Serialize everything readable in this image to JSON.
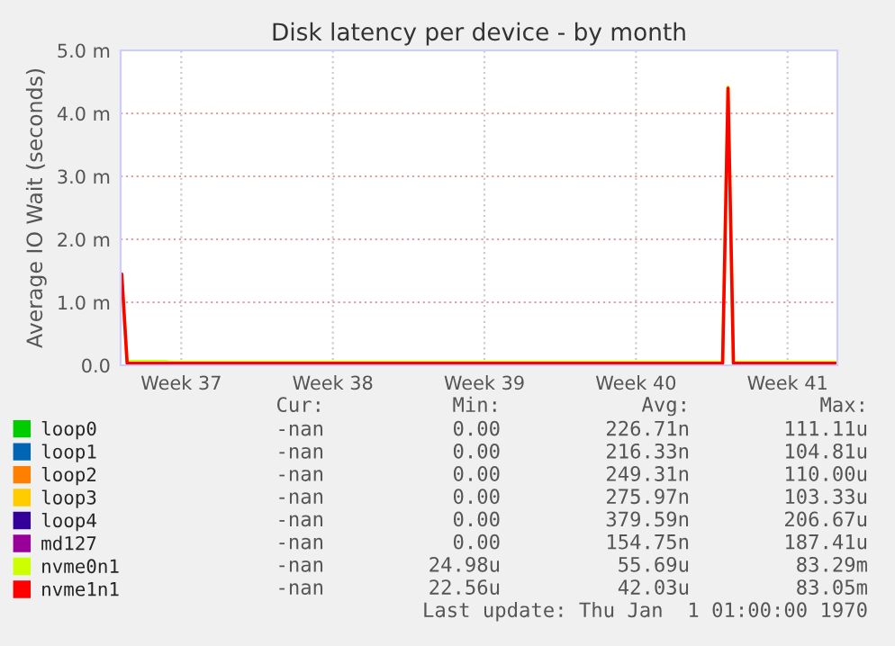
{
  "chart_data": {
    "type": "line",
    "title": "Disk latency per device - by month",
    "ylabel": "Average IO Wait (seconds)",
    "categories": [
      null,
      null,
      null,
      null,
      null,
      null,
      null,
      null,
      null,
      null,
      null,
      "Week 37",
      null,
      null,
      null,
      null,
      null,
      null,
      null,
      null,
      null,
      null,
      null,
      null,
      null,
      null,
      null,
      null,
      null,
      null,
      null,
      null,
      null,
      null,
      null,
      null,
      null,
      null,
      null,
      "Week 38",
      null,
      null,
      null,
      null,
      null,
      null,
      null,
      null,
      null,
      null,
      null,
      null,
      null,
      null,
      null,
      null,
      null,
      null,
      null,
      null,
      null,
      null,
      null,
      null,
      null,
      null,
      null,
      "Week 39",
      null,
      null,
      null,
      null,
      null,
      null,
      null,
      null,
      null,
      null,
      null,
      null,
      null,
      null,
      null,
      null,
      null,
      null,
      null,
      null,
      null,
      null,
      null,
      null,
      null,
      null,
      null,
      "Week 40",
      null,
      null,
      null,
      null,
      null,
      null,
      null,
      null,
      null,
      null,
      null,
      null,
      null,
      null,
      null,
      null,
      null,
      null,
      null,
      null,
      null,
      null,
      null,
      null,
      null,
      null,
      null,
      "Week 41",
      null,
      null,
      null,
      null,
      null,
      null,
      null,
      null,
      null
    ],
    "ylim": [
      0,
      5
    ],
    "yticks": [
      {
        "value": 0,
        "label": "0.0"
      },
      {
        "value": 1,
        "label": "1.0 m"
      },
      {
        "value": 2,
        "label": "2.0 m"
      },
      {
        "value": 3,
        "label": "3.0 m"
      },
      {
        "value": 4,
        "label": "4.0 m"
      },
      {
        "value": 5,
        "label": "5.0 m"
      }
    ],
    "grid": true,
    "legend": "bottom left",
    "marker": "none",
    "line_style": "solid",
    "series": [
      {
        "name": "loop0",
        "color": "#00cc00",
        "values": [
          null,
          null,
          null,
          null,
          null,
          null,
          null,
          null,
          null,
          null,
          null,
          null,
          null,
          null,
          null,
          null,
          null,
          null,
          null,
          null,
          null,
          null,
          null,
          null,
          null,
          null,
          null,
          null,
          null,
          null,
          null,
          null,
          null,
          null,
          null,
          null,
          null,
          null,
          null,
          null,
          null,
          null,
          null,
          null,
          null,
          null,
          null,
          null,
          null,
          null,
          null,
          null,
          null,
          null,
          null,
          null,
          null,
          null,
          null,
          null,
          null,
          null,
          null,
          null,
          null,
          null,
          null,
          null,
          null,
          null,
          null,
          null,
          null,
          null,
          null,
          null,
          null,
          null,
          null,
          null,
          null,
          null,
          null,
          null,
          null,
          null,
          null,
          null,
          null,
          null,
          null,
          null,
          null,
          null,
          null,
          null,
          null,
          null,
          null,
          null,
          null,
          null,
          null,
          null,
          null,
          null,
          null,
          null,
          null,
          null,
          null,
          null,
          null,
          null,
          null,
          null,
          null,
          null,
          null,
          null,
          null,
          null,
          null,
          null,
          null,
          null,
          null,
          null,
          null,
          null,
          null,
          null,
          null
        ]
      },
      {
        "name": "loop1",
        "color": "#0066b3",
        "values": [
          null,
          null,
          null,
          null,
          null,
          null,
          null,
          null,
          null,
          null,
          null,
          null,
          null,
          null,
          null,
          null,
          null,
          null,
          null,
          null,
          null,
          null,
          null,
          null,
          null,
          null,
          null,
          null,
          null,
          null,
          null,
          null,
          null,
          null,
          null,
          null,
          null,
          null,
          null,
          null,
          null,
          null,
          null,
          null,
          null,
          null,
          null,
          null,
          null,
          null,
          null,
          null,
          null,
          null,
          null,
          null,
          null,
          null,
          null,
          null,
          null,
          null,
          null,
          null,
          null,
          null,
          null,
          null,
          null,
          null,
          null,
          null,
          null,
          null,
          null,
          null,
          null,
          null,
          null,
          null,
          null,
          null,
          null,
          null,
          null,
          null,
          null,
          null,
          null,
          null,
          null,
          null,
          null,
          null,
          null,
          null,
          null,
          null,
          null,
          null,
          null,
          null,
          null,
          null,
          null,
          null,
          null,
          null,
          null,
          null,
          null,
          null,
          null,
          null,
          null,
          null,
          null,
          null,
          null,
          null,
          null,
          null,
          null,
          null,
          null,
          null,
          null,
          null,
          null,
          null,
          null,
          null,
          null
        ]
      },
      {
        "name": "loop2",
        "color": "#ff8000",
        "values": [
          null,
          null,
          null,
          null,
          null,
          null,
          null,
          null,
          null,
          null,
          null,
          null,
          null,
          null,
          null,
          null,
          null,
          null,
          null,
          null,
          null,
          null,
          null,
          null,
          null,
          null,
          null,
          null,
          null,
          null,
          null,
          null,
          null,
          null,
          null,
          null,
          null,
          null,
          null,
          null,
          null,
          null,
          null,
          null,
          null,
          null,
          null,
          null,
          null,
          null,
          null,
          null,
          null,
          null,
          null,
          null,
          null,
          null,
          null,
          null,
          null,
          null,
          null,
          null,
          null,
          null,
          null,
          null,
          null,
          null,
          null,
          null,
          null,
          null,
          null,
          null,
          null,
          null,
          null,
          null,
          null,
          null,
          null,
          null,
          null,
          null,
          null,
          null,
          null,
          null,
          null,
          null,
          null,
          null,
          null,
          null,
          null,
          null,
          null,
          null,
          null,
          null,
          null,
          null,
          null,
          null,
          null,
          null,
          null,
          null,
          null,
          null,
          null,
          null,
          null,
          null,
          null,
          null,
          null,
          null,
          null,
          null,
          null,
          null,
          null,
          null,
          null,
          null,
          null,
          null,
          null,
          null,
          null
        ]
      },
      {
        "name": "loop3",
        "color": "#ffcc00",
        "values": [
          null,
          null,
          null,
          null,
          null,
          null,
          null,
          null,
          null,
          null,
          null,
          null,
          null,
          null,
          null,
          null,
          null,
          null,
          null,
          null,
          null,
          null,
          null,
          null,
          null,
          null,
          null,
          null,
          null,
          null,
          null,
          null,
          null,
          null,
          null,
          null,
          null,
          null,
          null,
          null,
          null,
          null,
          null,
          null,
          null,
          null,
          null,
          null,
          null,
          null,
          null,
          null,
          null,
          null,
          null,
          null,
          null,
          null,
          null,
          null,
          null,
          null,
          null,
          null,
          null,
          null,
          null,
          null,
          null,
          null,
          null,
          null,
          null,
          null,
          null,
          null,
          null,
          null,
          null,
          null,
          null,
          null,
          null,
          null,
          null,
          null,
          null,
          null,
          null,
          null,
          null,
          null,
          null,
          null,
          null,
          null,
          null,
          null,
          null,
          null,
          null,
          null,
          null,
          null,
          null,
          null,
          null,
          null,
          null,
          null,
          null,
          null,
          null,
          null,
          null,
          null,
          null,
          null,
          null,
          null,
          null,
          null,
          null,
          null,
          null,
          null,
          null,
          null,
          null,
          null,
          null,
          null,
          null
        ]
      },
      {
        "name": "loop4",
        "color": "#330099",
        "values": [
          null,
          null,
          null,
          null,
          null,
          null,
          null,
          null,
          null,
          null,
          null,
          null,
          null,
          null,
          null,
          null,
          null,
          null,
          null,
          null,
          null,
          null,
          null,
          null,
          null,
          null,
          null,
          null,
          null,
          null,
          null,
          null,
          null,
          null,
          null,
          null,
          null,
          null,
          null,
          null,
          null,
          null,
          null,
          null,
          null,
          null,
          null,
          null,
          null,
          null,
          null,
          null,
          null,
          null,
          null,
          null,
          null,
          null,
          null,
          null,
          null,
          null,
          null,
          null,
          null,
          null,
          null,
          null,
          null,
          null,
          null,
          null,
          null,
          null,
          null,
          null,
          null,
          null,
          null,
          null,
          null,
          null,
          null,
          null,
          null,
          null,
          null,
          null,
          null,
          null,
          null,
          null,
          null,
          null,
          null,
          null,
          null,
          null,
          null,
          null,
          null,
          null,
          null,
          null,
          null,
          null,
          null,
          null,
          null,
          null,
          null,
          null,
          null,
          null,
          null,
          null,
          null,
          null,
          null,
          null,
          null,
          null,
          null,
          null,
          null,
          null,
          null,
          null,
          null,
          null,
          null,
          null,
          null
        ]
      },
      {
        "name": "md127",
        "color": "#990099",
        "values": [
          null,
          null,
          null,
          null,
          null,
          null,
          null,
          null,
          null,
          null,
          null,
          null,
          null,
          null,
          null,
          null,
          null,
          null,
          null,
          null,
          null,
          null,
          null,
          null,
          null,
          null,
          null,
          null,
          null,
          null,
          null,
          null,
          null,
          null,
          null,
          null,
          null,
          null,
          null,
          null,
          null,
          null,
          null,
          null,
          null,
          null,
          null,
          null,
          null,
          null,
          null,
          null,
          null,
          null,
          null,
          null,
          null,
          null,
          null,
          null,
          null,
          null,
          null,
          null,
          null,
          null,
          null,
          null,
          null,
          null,
          null,
          null,
          null,
          null,
          null,
          null,
          null,
          null,
          null,
          null,
          null,
          null,
          null,
          null,
          null,
          null,
          null,
          null,
          null,
          null,
          null,
          null,
          null,
          null,
          null,
          null,
          null,
          null,
          null,
          null,
          null,
          null,
          null,
          null,
          null,
          null,
          null,
          null,
          null,
          null,
          null,
          null,
          null,
          null,
          null,
          null,
          null,
          null,
          null,
          null,
          null,
          null,
          null,
          null,
          null,
          null,
          null,
          null,
          null,
          null,
          null,
          null,
          null
        ]
      },
      {
        "name": "nvme0n1",
        "color": "#ccff00",
        "values": [
          1.4,
          0.06,
          0.06,
          0.06,
          0.06,
          0.06,
          0.06,
          0.06,
          0.06,
          0.05,
          0.05,
          0.05,
          0.05,
          0.05,
          0.05,
          0.05,
          0.05,
          0.05,
          0.05,
          0.05,
          0.05,
          0.05,
          0.05,
          0.05,
          0.05,
          0.05,
          0.05,
          0.05,
          0.05,
          0.05,
          0.05,
          0.05,
          0.05,
          0.05,
          0.05,
          0.05,
          0.05,
          0.05,
          0.05,
          0.05,
          0.05,
          0.05,
          0.05,
          0.05,
          0.05,
          0.05,
          0.05,
          0.05,
          0.05,
          0.05,
          0.05,
          0.05,
          0.05,
          0.05,
          0.05,
          0.05,
          0.05,
          0.05,
          0.05,
          0.05,
          0.05,
          0.05,
          0.05,
          0.05,
          0.05,
          0.05,
          0.05,
          0.05,
          0.05,
          0.05,
          0.05,
          0.05,
          0.05,
          0.05,
          0.05,
          0.05,
          0.05,
          0.05,
          0.05,
          0.05,
          0.05,
          0.05,
          0.05,
          0.05,
          0.05,
          0.05,
          0.05,
          0.05,
          0.05,
          0.05,
          0.05,
          0.05,
          0.05,
          0.05,
          0.05,
          0.05,
          0.05,
          0.05,
          0.05,
          0.05,
          0.05,
          0.05,
          0.05,
          0.05,
          0.05,
          0.05,
          0.05,
          0.05,
          0.05,
          0.05,
          0.05,
          0.05,
          4.42,
          0.05,
          0.05,
          0.05,
          0.05,
          0.05,
          0.05,
          0.05,
          0.05,
          0.05,
          0.05,
          0.05,
          0.05,
          0.05,
          0.05,
          0.05,
          0.05,
          0.05,
          0.05,
          0.05,
          0.05
        ]
      },
      {
        "name": "nvme1n1",
        "color": "#ff0000",
        "values": [
          1.45,
          0.03,
          0.03,
          0.03,
          0.03,
          0.03,
          0.03,
          0.03,
          0.03,
          0.03,
          0.03,
          0.03,
          0.03,
          0.03,
          0.03,
          0.03,
          0.03,
          0.03,
          0.03,
          0.03,
          0.03,
          0.03,
          0.03,
          0.03,
          0.03,
          0.03,
          0.03,
          0.03,
          0.03,
          0.03,
          0.03,
          0.03,
          0.03,
          0.03,
          0.03,
          0.03,
          0.03,
          0.03,
          0.03,
          0.03,
          0.03,
          0.03,
          0.03,
          0.03,
          0.03,
          0.03,
          0.03,
          0.03,
          0.03,
          0.03,
          0.03,
          0.03,
          0.03,
          0.03,
          0.03,
          0.03,
          0.03,
          0.03,
          0.03,
          0.03,
          0.03,
          0.03,
          0.03,
          0.03,
          0.03,
          0.03,
          0.03,
          0.03,
          0.03,
          0.03,
          0.03,
          0.03,
          0.03,
          0.03,
          0.03,
          0.03,
          0.03,
          0.03,
          0.03,
          0.03,
          0.03,
          0.03,
          0.03,
          0.03,
          0.03,
          0.03,
          0.03,
          0.03,
          0.03,
          0.03,
          0.03,
          0.03,
          0.03,
          0.03,
          0.03,
          0.03,
          0.03,
          0.03,
          0.03,
          0.03,
          0.03,
          0.03,
          0.03,
          0.03,
          0.03,
          0.03,
          0.03,
          0.03,
          0.03,
          0.03,
          0.03,
          0.03,
          4.4,
          0.03,
          0.03,
          0.03,
          0.03,
          0.03,
          0.03,
          0.03,
          0.03,
          0.03,
          0.03,
          0.03,
          0.03,
          0.03,
          0.03,
          0.03,
          0.03,
          0.03,
          0.03,
          0.03,
          0.03
        ]
      }
    ],
    "annotations": [
      "Cur:",
      "Min:",
      "Avg:",
      "Max:",
      "-nan",
      "0.00",
      "226.71n",
      "111.11u",
      "-nan",
      "0.00",
      "216.33n",
      "104.81u",
      "-nan",
      "0.00",
      "249.31n",
      "110.00u",
      "-nan",
      "0.00",
      "275.97n",
      "103.33u",
      "-nan",
      "0.00",
      "379.59n",
      "206.67u",
      "-nan",
      "0.00",
      "154.75n",
      "187.41u",
      "-nan",
      "24.98u",
      "55.69u",
      "83.29m",
      "-nan",
      "22.56u",
      "42.03u",
      "83.05m",
      "Last update: Thu Jan  1 01:00:00 1970"
    ]
  }
}
